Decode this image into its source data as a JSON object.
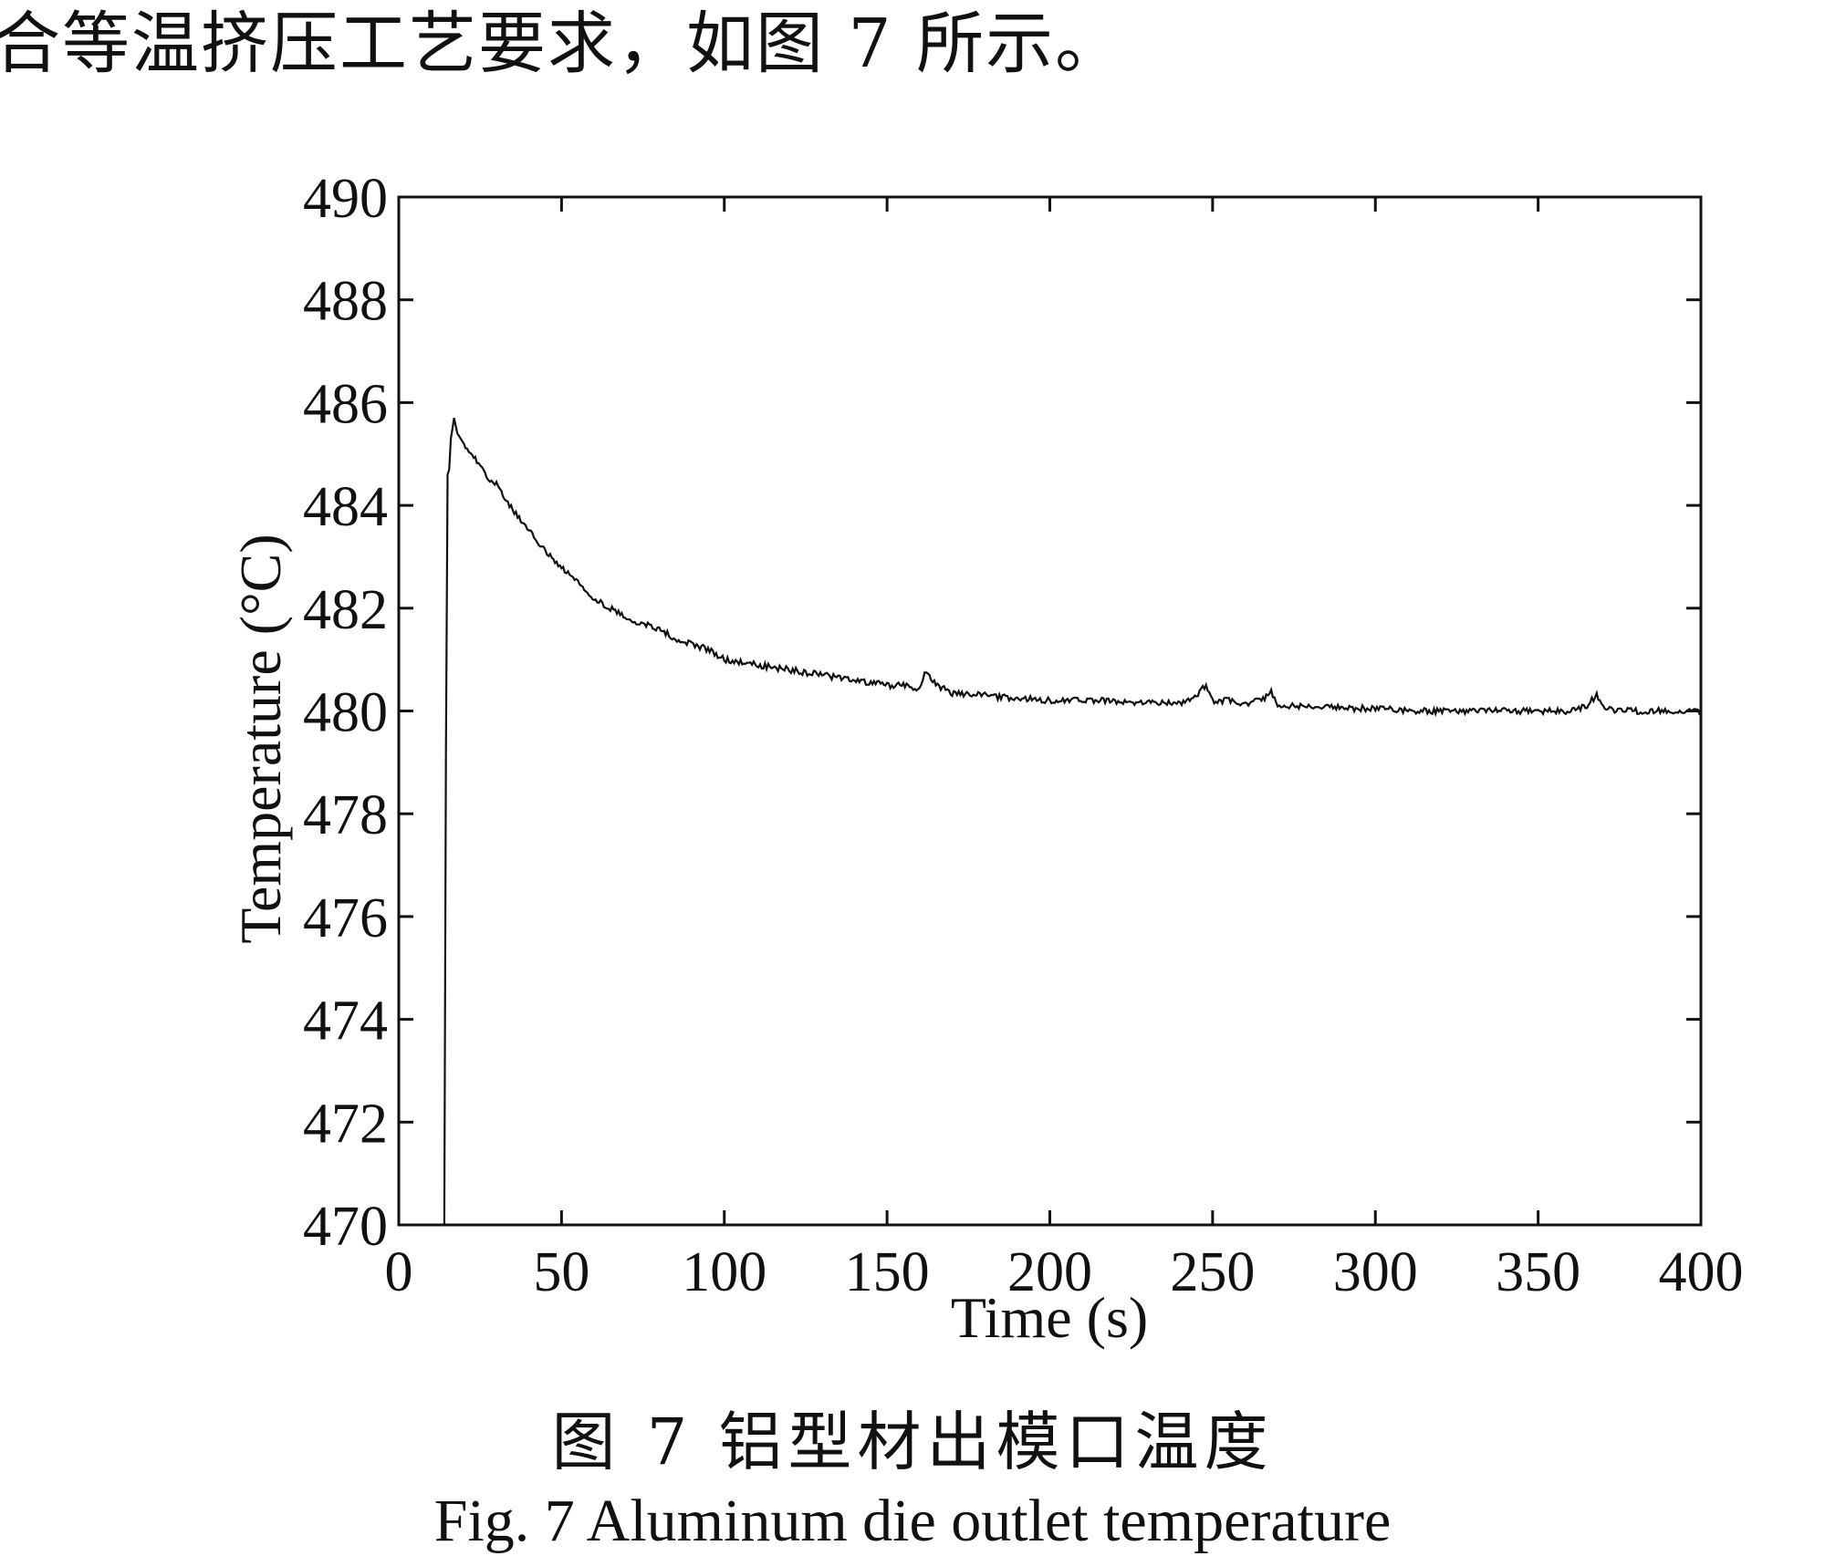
{
  "document": {
    "top_text": "合等温挤压工艺要求，如图 7 所示。",
    "caption_cn": "图 7  铝型材出模口温度",
    "caption_en": "Fig. 7 Aluminum die outlet temperature"
  },
  "chart_data": {
    "type": "line",
    "xlabel": "Time (s)",
    "ylabel": "Temperature (°C)",
    "xlim": [
      0,
      400
    ],
    "ylim": [
      470,
      490
    ],
    "xticks": [
      0,
      50,
      100,
      150,
      200,
      250,
      300,
      350,
      400
    ],
    "yticks": [
      470,
      472,
      474,
      476,
      478,
      480,
      482,
      484,
      486,
      488,
      490
    ],
    "grid": false,
    "series": [
      {
        "x": [
          0,
          14,
          14.5,
          15,
          15.5,
          16,
          17,
          18,
          20,
          22,
          25,
          28,
          30,
          35,
          40,
          45,
          50,
          55,
          60,
          65,
          70,
          75,
          80,
          85,
          90,
          95,
          100,
          110,
          120,
          130,
          140,
          150,
          155,
          160,
          162,
          165,
          170,
          180,
          190,
          200,
          210,
          220,
          230,
          240,
          245,
          248,
          250,
          255,
          260,
          265,
          268,
          270,
          275,
          280,
          290,
          300,
          310,
          320,
          330,
          340,
          350,
          360,
          365,
          368,
          370,
          375,
          380,
          390,
          400
        ],
        "y": [
          470,
          470,
          479.2,
          484.6,
          484.7,
          485.3,
          485.7,
          485.4,
          485.2,
          485.0,
          484.8,
          484.5,
          484.4,
          483.9,
          483.5,
          483.1,
          482.8,
          482.5,
          482.2,
          482.0,
          481.8,
          481.7,
          481.6,
          481.4,
          481.3,
          481.2,
          481.0,
          480.9,
          480.8,
          480.7,
          480.6,
          480.5,
          480.5,
          480.4,
          480.8,
          480.5,
          480.35,
          480.3,
          480.25,
          480.2,
          480.2,
          480.2,
          480.15,
          480.15,
          480.3,
          480.5,
          480.2,
          480.2,
          480.15,
          480.2,
          480.4,
          480.1,
          480.1,
          480.1,
          480.05,
          480.05,
          480.0,
          480.0,
          480.0,
          480.0,
          480.0,
          480.0,
          480.1,
          480.3,
          480.05,
          480.0,
          480.0,
          480.0,
          480.0
        ]
      }
    ]
  }
}
